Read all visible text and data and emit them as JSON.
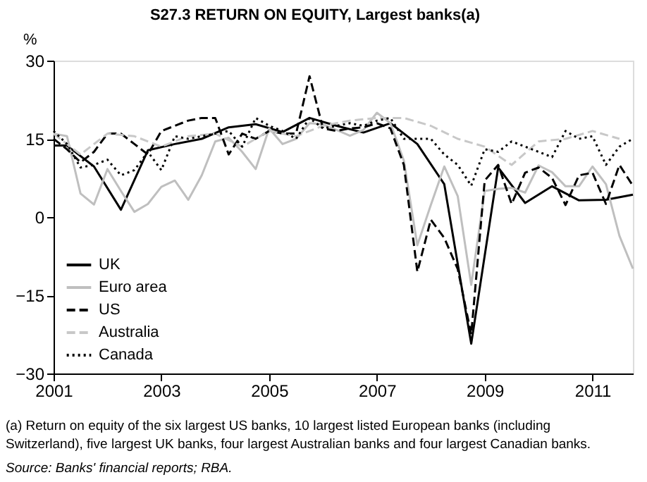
{
  "chart_data": {
    "type": "line",
    "title": "S27.3   RETURN ON EQUITY, Largest banks(a)",
    "ylabel": "%",
    "xlim": [
      2001,
      2011.75
    ],
    "xticks": [
      2001,
      2003,
      2005,
      2007,
      2009,
      2011
    ],
    "ylim": [
      -30,
      30
    ],
    "yticks": [
      -30,
      -15,
      0,
      15,
      30
    ],
    "grid": false,
    "legend": "bottom left",
    "marker": "none",
    "annotations": [
      "(a) Return on equity of the six largest US banks, 10 largest listed European banks (including Switzerland), five largest UK banks, four largest Australian banks and four largest Canadian banks.",
      "Source: Banks' financial reports; RBA."
    ],
    "series": [
      {
        "name": "UK",
        "color": "#000000",
        "line_style": "solid",
        "x": [
          2001.0,
          2001.25,
          2001.75,
          2002.25,
          2002.75,
          2003.25,
          2003.75,
          2004.25,
          2004.75,
          2005.25,
          2005.75,
          2006.25,
          2006.75,
          2007.25,
          2007.75,
          2008.25,
          2008.75,
          2009.25,
          2009.75,
          2010.25,
          2010.75,
          2011.25,
          2011.75
        ],
        "values": [
          13.7,
          13.7,
          9.7,
          1.4,
          12.8,
          14,
          15,
          17.2,
          17.8,
          16.3,
          19,
          17.5,
          16.2,
          18,
          14,
          6.3,
          -24.3,
          9.5,
          2.7,
          5.9,
          3.2,
          3.3,
          4.3
        ]
      },
      {
        "name": "Euro area",
        "color": "#bfbfbf",
        "line_style": "solid",
        "x": [
          2001.0,
          2001.25,
          2001.5,
          2001.75,
          2002.0,
          2002.25,
          2002.5,
          2002.75,
          2003.0,
          2003.25,
          2003.5,
          2003.75,
          2004.0,
          2004.25,
          2004.5,
          2004.75,
          2005.0,
          2005.25,
          2005.5,
          2005.75,
          2006.0,
          2006.25,
          2006.5,
          2006.75,
          2007.0,
          2007.25,
          2007.5,
          2007.75,
          2008.0,
          2008.25,
          2008.5,
          2008.75,
          2009.0,
          2009.25,
          2009.5,
          2009.75,
          2010.0,
          2010.25,
          2010.5,
          2010.75,
          2011.0,
          2011.25,
          2011.5,
          2011.75
        ],
        "values": [
          16,
          15.5,
          4.5,
          2.4,
          9.2,
          5,
          1,
          2.5,
          5.8,
          7,
          3.3,
          8,
          14.5,
          15.2,
          12.5,
          9.2,
          17,
          14,
          15,
          18,
          17.8,
          16.7,
          15.6,
          16.7,
          20,
          18,
          10.8,
          -5.4,
          2.3,
          9.7,
          4,
          -13,
          5,
          5.4,
          5.6,
          4.7,
          9.9,
          8.6,
          5.9,
          5.9,
          9.7,
          6.3,
          -3.6,
          -9.9
        ]
      },
      {
        "name": "US",
        "color": "#000000",
        "line_style": "dashed",
        "x": [
          2001.0,
          2001.25,
          2001.5,
          2001.75,
          2002.0,
          2002.25,
          2002.5,
          2002.75,
          2003.0,
          2003.25,
          2003.5,
          2003.75,
          2004.0,
          2004.25,
          2004.5,
          2004.75,
          2005.0,
          2005.25,
          2005.5,
          2005.75,
          2006.0,
          2006.25,
          2006.5,
          2006.75,
          2007.0,
          2007.25,
          2007.5,
          2007.75,
          2008.0,
          2008.25,
          2008.5,
          2008.75,
          2009.0,
          2009.25,
          2009.5,
          2009.75,
          2010.0,
          2010.25,
          2010.5,
          2010.75,
          2011.0,
          2011.25,
          2011.5,
          2011.75
        ],
        "values": [
          15,
          13,
          10.5,
          12.5,
          16,
          16,
          14,
          12,
          16.5,
          17.5,
          18.5,
          19,
          19,
          12,
          16,
          15,
          16.5,
          16,
          16,
          27,
          17,
          16.5,
          17,
          17.2,
          18,
          17,
          10,
          -10.5,
          -0.5,
          -4,
          -10,
          -22.5,
          7,
          10,
          2.5,
          8.5,
          9.5,
          7.5,
          2.3,
          8,
          8.5,
          2.5,
          10,
          6
        ]
      },
      {
        "name": "Australia",
        "color": "#c8c8c8",
        "line_style": "dashed",
        "x": [
          2001.0,
          2001.5,
          2002.0,
          2002.5,
          2003.0,
          2003.5,
          2004.0,
          2004.5,
          2005.0,
          2005.5,
          2006.0,
          2006.5,
          2007.0,
          2007.5,
          2008.0,
          2008.5,
          2009.0,
          2009.5,
          2010.0,
          2010.5,
          2011.0,
          2011.5
        ],
        "values": [
          16,
          12,
          16,
          15.5,
          13.5,
          15.5,
          16,
          13.5,
          16.5,
          15.5,
          17.5,
          18.5,
          19,
          19,
          17.5,
          15,
          13.5,
          10,
          14.5,
          15,
          16.5,
          15
        ]
      },
      {
        "name": "Canada",
        "color": "#000000",
        "line_style": "dotted",
        "x": [
          2001.0,
          2001.25,
          2001.5,
          2001.75,
          2002.0,
          2002.25,
          2002.5,
          2002.75,
          2003.0,
          2003.25,
          2003.5,
          2003.75,
          2004.0,
          2004.25,
          2004.5,
          2004.75,
          2005.0,
          2005.25,
          2005.5,
          2005.75,
          2006.0,
          2006.25,
          2006.5,
          2006.75,
          2007.0,
          2007.25,
          2007.5,
          2007.75,
          2008.0,
          2008.25,
          2008.5,
          2008.75,
          2009.0,
          2009.25,
          2009.5,
          2009.75,
          2010.0,
          2010.25,
          2010.5,
          2010.75,
          2011.0,
          2011.25,
          2011.5,
          2011.75
        ],
        "values": [
          16.5,
          14,
          9.5,
          10,
          11,
          8,
          9,
          12.5,
          9,
          15.5,
          15,
          15.5,
          16,
          16.5,
          13.5,
          19,
          17.5,
          16.5,
          15,
          19,
          17,
          17.5,
          18,
          17.5,
          18.5,
          19,
          15,
          15,
          15,
          12,
          10,
          6,
          13,
          12.5,
          14.5,
          13.5,
          12.5,
          11.5,
          16.5,
          15,
          15.5,
          10,
          13.5,
          15
        ]
      }
    ]
  }
}
